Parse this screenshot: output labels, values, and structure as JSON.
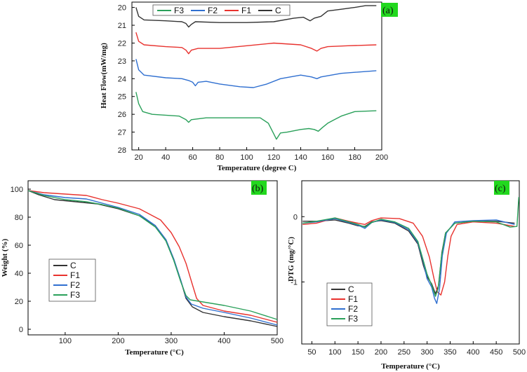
{
  "colors": {
    "C": "#333333",
    "F1": "#e8322e",
    "F2": "#2f6fd0",
    "F3": "#2aa05a",
    "tag_bg": "#22d81e"
  },
  "chart_data": [
    {
      "id": "a",
      "panel_label": "(a)",
      "type": "line",
      "title": "",
      "xlabel": "Temperature (degree C)",
      "ylabel": "Heat Flow(mW/mg)",
      "xlim": [
        15,
        200
      ],
      "ylim": [
        28,
        19.7
      ],
      "y_inverted": true,
      "xticks": [
        20,
        40,
        60,
        80,
        100,
        120,
        140,
        160,
        180,
        200
      ],
      "yticks": [
        20,
        21,
        22,
        23,
        24,
        25,
        26,
        27,
        28
      ],
      "legend_order": [
        "F3",
        "F2",
        "F1",
        "C"
      ],
      "legend_position": "top",
      "series": [
        {
          "name": "C",
          "points": [
            [
              18,
              20
            ],
            [
              20,
              20.5
            ],
            [
              24,
              20.7
            ],
            [
              40,
              20.75
            ],
            [
              52,
              20.8
            ],
            [
              55,
              20.9
            ],
            [
              57,
              21.1
            ],
            [
              59,
              20.95
            ],
            [
              62,
              20.8
            ],
            [
              80,
              20.85
            ],
            [
              100,
              20.85
            ],
            [
              120,
              20.8
            ],
            [
              135,
              20.6
            ],
            [
              142,
              20.55
            ],
            [
              147,
              20.75
            ],
            [
              150,
              20.6
            ],
            [
              155,
              20.5
            ],
            [
              160,
              20.2
            ],
            [
              170,
              20.1
            ],
            [
              180,
              20.0
            ],
            [
              188,
              19.9
            ],
            [
              196,
              19.9
            ]
          ]
        },
        {
          "name": "F1",
          "points": [
            [
              18,
              21.4
            ],
            [
              20,
              21.9
            ],
            [
              24,
              22.1
            ],
            [
              40,
              22.2
            ],
            [
              52,
              22.25
            ],
            [
              55,
              22.4
            ],
            [
              57,
              22.6
            ],
            [
              59,
              22.4
            ],
            [
              64,
              22.3
            ],
            [
              80,
              22.3
            ],
            [
              100,
              22.15
            ],
            [
              120,
              22.0
            ],
            [
              140,
              22.1
            ],
            [
              148,
              22.3
            ],
            [
              152,
              22.45
            ],
            [
              155,
              22.3
            ],
            [
              160,
              22.2
            ],
            [
              175,
              22.15
            ],
            [
              196,
              22.1
            ]
          ]
        },
        {
          "name": "F2",
          "points": [
            [
              18,
              22.9
            ],
            [
              20,
              23.5
            ],
            [
              24,
              23.8
            ],
            [
              40,
              23.95
            ],
            [
              52,
              24.0
            ],
            [
              57,
              24.1
            ],
            [
              60,
              24.2
            ],
            [
              62,
              24.4
            ],
            [
              64,
              24.2
            ],
            [
              70,
              24.15
            ],
            [
              80,
              24.3
            ],
            [
              95,
              24.45
            ],
            [
              105,
              24.5
            ],
            [
              115,
              24.3
            ],
            [
              125,
              24.0
            ],
            [
              140,
              23.8
            ],
            [
              148,
              23.9
            ],
            [
              152,
              24.0
            ],
            [
              155,
              23.9
            ],
            [
              170,
              23.7
            ],
            [
              196,
              23.55
            ]
          ]
        },
        {
          "name": "F3",
          "points": [
            [
              18,
              24.75
            ],
            [
              20,
              25.4
            ],
            [
              23,
              25.85
            ],
            [
              30,
              26.0
            ],
            [
              50,
              26.1
            ],
            [
              55,
              26.3
            ],
            [
              57,
              26.45
            ],
            [
              59,
              26.3
            ],
            [
              70,
              26.2
            ],
            [
              95,
              26.2
            ],
            [
              110,
              26.2
            ],
            [
              116,
              26.5
            ],
            [
              120,
              27.1
            ],
            [
              122,
              27.4
            ],
            [
              125,
              27.05
            ],
            [
              130,
              27.0
            ],
            [
              140,
              26.85
            ],
            [
              146,
              26.8
            ],
            [
              150,
              26.85
            ],
            [
              153,
              26.95
            ],
            [
              156,
              26.75
            ],
            [
              160,
              26.5
            ],
            [
              165,
              26.3
            ],
            [
              170,
              26.1
            ],
            [
              180,
              25.85
            ],
            [
              196,
              25.8
            ]
          ]
        }
      ]
    },
    {
      "id": "b",
      "panel_label": "(b)",
      "type": "line",
      "title": "",
      "xlabel": "Temperature (°C)",
      "ylabel": "Weight (%)",
      "xlim": [
        30,
        500
      ],
      "ylim": [
        -4,
        106
      ],
      "xticks": [
        100,
        200,
        300,
        400,
        500
      ],
      "yticks": [
        0,
        20,
        40,
        60,
        80,
        100
      ],
      "legend_order": [
        "C",
        "F1",
        "F2",
        "F3"
      ],
      "legend_position": "lower-left",
      "series": [
        {
          "name": "C",
          "points": [
            [
              30,
              99
            ],
            [
              50,
              96
            ],
            [
              80,
              92.5
            ],
            [
              120,
              91
            ],
            [
              160,
              89.5
            ],
            [
              200,
              86
            ],
            [
              240,
              81
            ],
            [
              270,
              74
            ],
            [
              290,
              64
            ],
            [
              305,
              50
            ],
            [
              318,
              35
            ],
            [
              328,
              22
            ],
            [
              340,
              16
            ],
            [
              360,
              12
            ],
            [
              400,
              9
            ],
            [
              450,
              6
            ],
            [
              500,
              2
            ]
          ]
        },
        {
          "name": "F1",
          "points": [
            [
              30,
              99
            ],
            [
              60,
              97.5
            ],
            [
              100,
              96.5
            ],
            [
              140,
              95.5
            ],
            [
              170,
              92.5
            ],
            [
              200,
              90
            ],
            [
              240,
              86
            ],
            [
              280,
              78
            ],
            [
              300,
              69
            ],
            [
              315,
              59
            ],
            [
              328,
              47
            ],
            [
              340,
              32
            ],
            [
              348,
              22
            ],
            [
              360,
              17
            ],
            [
              400,
              13
            ],
            [
              450,
              10
            ],
            [
              500,
              5
            ]
          ]
        },
        {
          "name": "F2",
          "points": [
            [
              30,
              99
            ],
            [
              60,
              96
            ],
            [
              100,
              94
            ],
            [
              140,
              93
            ],
            [
              170,
              90
            ],
            [
              200,
              87
            ],
            [
              240,
              82
            ],
            [
              270,
              74
            ],
            [
              290,
              64
            ],
            [
              305,
              50
            ],
            [
              318,
              35
            ],
            [
              328,
              23
            ],
            [
              338,
              18
            ],
            [
              360,
              15
            ],
            [
              400,
              12
            ],
            [
              450,
              8
            ],
            [
              500,
              3
            ]
          ]
        },
        {
          "name": "F3",
          "points": [
            [
              30,
              99
            ],
            [
              60,
              95.5
            ],
            [
              100,
              92.5
            ],
            [
              140,
              91
            ],
            [
              170,
              89
            ],
            [
              200,
              86.5
            ],
            [
              240,
              81
            ],
            [
              270,
              73
            ],
            [
              290,
              63
            ],
            [
              305,
              49
            ],
            [
              318,
              34
            ],
            [
              328,
              24
            ],
            [
              336,
              21
            ],
            [
              360,
              19.5
            ],
            [
              400,
              17
            ],
            [
              450,
              13
            ],
            [
              500,
              7
            ]
          ]
        }
      ]
    },
    {
      "id": "c",
      "panel_label": "(c)",
      "type": "line",
      "title": "",
      "xlabel": "Temperature (°C)",
      "ylabel": "DTG (mg/°C)",
      "xlim": [
        28,
        500
      ],
      "ylim": [
        -1.95,
        0.55
      ],
      "xticks": [
        50,
        100,
        150,
        200,
        250,
        300,
        350,
        400,
        450,
        500
      ],
      "yticks": [
        0,
        -1
      ],
      "legend_order": [
        "C",
        "F1",
        "F2",
        "F3"
      ],
      "legend_position": "lower-left",
      "series": [
        {
          "name": "C",
          "points": [
            [
              30,
              -0.07
            ],
            [
              60,
              -0.07
            ],
            [
              100,
              -0.05
            ],
            [
              130,
              -0.1
            ],
            [
              150,
              -0.14
            ],
            [
              165,
              -0.15
            ],
            [
              180,
              -0.08
            ],
            [
              200,
              -0.06
            ],
            [
              230,
              -0.1
            ],
            [
              260,
              -0.22
            ],
            [
              280,
              -0.42
            ],
            [
              292,
              -0.75
            ],
            [
              300,
              -0.92
            ],
            [
              310,
              -1.03
            ],
            [
              318,
              -1.18
            ],
            [
              325,
              -1.05
            ],
            [
              332,
              -0.55
            ],
            [
              340,
              -0.25
            ],
            [
              360,
              -0.1
            ],
            [
              400,
              -0.07
            ],
            [
              450,
              -0.07
            ],
            [
              490,
              -0.1
            ]
          ]
        },
        {
          "name": "F1",
          "points": [
            [
              30,
              -0.12
            ],
            [
              60,
              -0.1
            ],
            [
              100,
              -0.02
            ],
            [
              130,
              -0.07
            ],
            [
              150,
              -0.1
            ],
            [
              165,
              -0.12
            ],
            [
              180,
              -0.06
            ],
            [
              200,
              -0.02
            ],
            [
              240,
              -0.03
            ],
            [
              270,
              -0.1
            ],
            [
              290,
              -0.3
            ],
            [
              305,
              -0.62
            ],
            [
              315,
              -0.95
            ],
            [
              322,
              -1.15
            ],
            [
              330,
              -1.2
            ],
            [
              338,
              -1.0
            ],
            [
              345,
              -0.6
            ],
            [
              352,
              -0.3
            ],
            [
              365,
              -0.12
            ],
            [
              400,
              -0.08
            ],
            [
              450,
              -0.1
            ],
            [
              490,
              -0.15
            ]
          ]
        },
        {
          "name": "F2",
          "points": [
            [
              30,
              -0.1
            ],
            [
              60,
              -0.08
            ],
            [
              100,
              -0.03
            ],
            [
              130,
              -0.09
            ],
            [
              150,
              -0.13
            ],
            [
              165,
              -0.18
            ],
            [
              180,
              -0.09
            ],
            [
              200,
              -0.05
            ],
            [
              230,
              -0.09
            ],
            [
              260,
              -0.2
            ],
            [
              280,
              -0.4
            ],
            [
              292,
              -0.7
            ],
            [
              300,
              -0.95
            ],
            [
              310,
              -1.08
            ],
            [
              316,
              -1.25
            ],
            [
              321,
              -1.33
            ],
            [
              327,
              -1.1
            ],
            [
              333,
              -0.6
            ],
            [
              342,
              -0.25
            ],
            [
              360,
              -0.08
            ],
            [
              400,
              -0.06
            ],
            [
              450,
              -0.05
            ],
            [
              490,
              -0.12
            ]
          ]
        },
        {
          "name": "F3",
          "points": [
            [
              30,
              -0.1
            ],
            [
              60,
              -0.07
            ],
            [
              100,
              -0.02
            ],
            [
              130,
              -0.08
            ],
            [
              150,
              -0.12
            ],
            [
              165,
              -0.16
            ],
            [
              180,
              -0.09
            ],
            [
              200,
              -0.04
            ],
            [
              230,
              -0.08
            ],
            [
              260,
              -0.18
            ],
            [
              280,
              -0.38
            ],
            [
              292,
              -0.68
            ],
            [
              300,
              -0.88
            ],
            [
              310,
              -1.05
            ],
            [
              318,
              -1.22
            ],
            [
              324,
              -1.1
            ],
            [
              331,
              -0.62
            ],
            [
              340,
              -0.25
            ],
            [
              360,
              -0.1
            ],
            [
              400,
              -0.07
            ],
            [
              450,
              -0.08
            ],
            [
              480,
              -0.16
            ],
            [
              495,
              -0.15
            ],
            [
              499,
              0.3
            ]
          ]
        }
      ]
    }
  ]
}
